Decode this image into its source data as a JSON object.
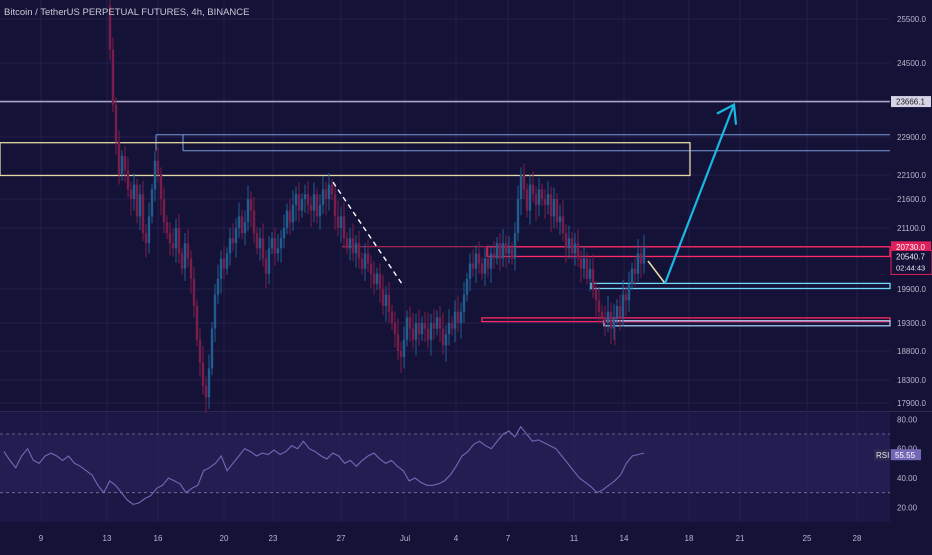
{
  "header": {
    "symbol_title": "Bitcoin / TetherUS PERPETUAL FUTURES, 4h, BINANCE"
  },
  "colors": {
    "background": "#151238",
    "rsi_background": "#1c1845",
    "grid": "#231f4a",
    "candle_up": "#1f5e8e",
    "candle_down": "#7a1d4a",
    "zone_yellow": "#e3d9a3",
    "zone_red": "#ff2a64",
    "zone_blue": "#6fd9f7",
    "target_line": "#a8a4c4",
    "arrow": "#19b7e2",
    "rsi_line": "#7468b6"
  },
  "chart_data": {
    "type": "candlestick",
    "title": "Bitcoin / TetherUS PERPETUAL FUTURES, 4h, BINANCE",
    "price_axis": {
      "ticks": [
        "25500.0",
        "24500.0",
        "22900.0",
        "22100.0",
        "21600.0",
        "21100.0",
        "19900.0",
        "19300.0",
        "18800.0",
        "18300.0",
        "17900.0"
      ],
      "range": [
        17700,
        25800
      ]
    },
    "time_axis": {
      "ticks": [
        "9",
        "13",
        "16",
        "20",
        "23",
        "27",
        "Jul",
        "4",
        "7",
        "11",
        "14",
        "18",
        "21",
        "25",
        "28"
      ]
    },
    "labels": {
      "target_price": "23666.1",
      "last_price": "20730.0",
      "mark_price": "20540.7",
      "countdown": "02:44:43",
      "rsi_tag": "RSI",
      "rsi_value": "55.55"
    },
    "levels": {
      "target": 23666.1,
      "last": 20730.0,
      "mark": 20540.7
    },
    "rsi": {
      "name": "RSI",
      "value": 55.55,
      "ticks": [
        "80.00",
        "60.00",
        "40.00",
        "20.00"
      ],
      "upper_band": 70,
      "lower_band": 30,
      "path_values": [
        58,
        52,
        47,
        55,
        60,
        52,
        50,
        55,
        57,
        55,
        52,
        55,
        50,
        48,
        45,
        42,
        35,
        30,
        38,
        35,
        30,
        25,
        22,
        23,
        26,
        28,
        33,
        35,
        40,
        38,
        36,
        30,
        33,
        35,
        45,
        47,
        50,
        55,
        45,
        50,
        55,
        60,
        58,
        55,
        57,
        56,
        59,
        56,
        58,
        62,
        60,
        65,
        60,
        58,
        55,
        53,
        57,
        55,
        50,
        52,
        48,
        52,
        55,
        57,
        53,
        50,
        52,
        48,
        45,
        38,
        40,
        37,
        35,
        35,
        36,
        38,
        42,
        48,
        55,
        58,
        63,
        65,
        62,
        60,
        65,
        70,
        72,
        68,
        75,
        70,
        65,
        66,
        64,
        62,
        60,
        55,
        50,
        45,
        40,
        37,
        34,
        30,
        32,
        35,
        38,
        42,
        50,
        55,
        56,
        57
      ]
    }
  }
}
